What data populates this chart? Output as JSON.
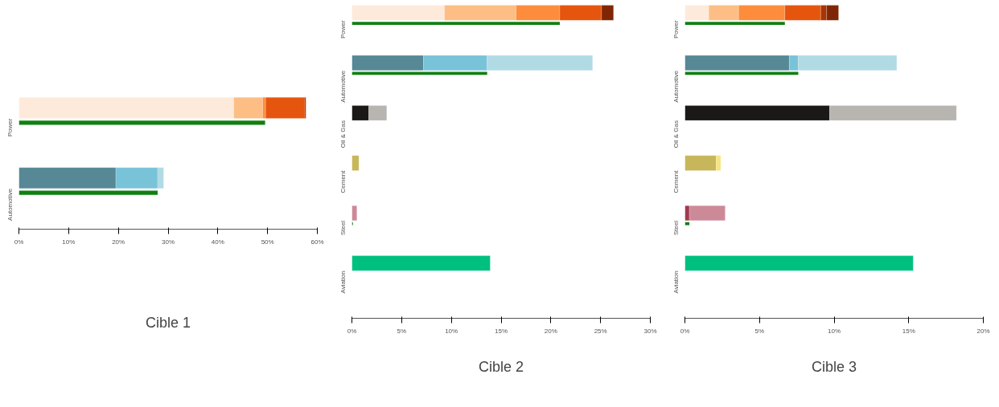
{
  "chart_data": [
    {
      "type": "bar",
      "orientation": "horizontal",
      "title": "Cible 1",
      "categories": [
        "Power",
        "Automotive"
      ],
      "xlim": [
        0,
        60
      ],
      "xticks": [
        {
          "value": 0,
          "label": "0%"
        },
        {
          "value": 10,
          "label": "10%"
        },
        {
          "value": 20,
          "label": "20%"
        },
        {
          "value": 30,
          "label": "30%"
        },
        {
          "value": 40,
          "label": "40%"
        },
        {
          "value": 50,
          "label": "50%"
        },
        {
          "value": 60,
          "label": "60%"
        }
      ],
      "grid": false,
      "series": [
        {
          "colors": [
            "#feeadb",
            "#568896"
          ],
          "base": [
            0,
            0
          ],
          "values": [
            43.2,
            19.5
          ]
        },
        {
          "colors": [
            "#fdbe85",
            "#79c3d8"
          ],
          "base": [
            43.2,
            19.5
          ],
          "values": [
            5.8,
            8.4
          ]
        },
        {
          "colors": [
            "#fd8d3c",
            "#b0dbe5"
          ],
          "base": [
            49.0,
            27.9
          ],
          "values": [
            0.6,
            1.2
          ]
        },
        {
          "colors": [
            "#e6550d",
            null
          ],
          "base": [
            49.6,
            null
          ],
          "values": [
            7.9,
            null
          ]
        },
        {
          "colors": [
            "#7f2704",
            null
          ],
          "base": [
            57.5,
            null
          ],
          "values": [
            0.2,
            null
          ]
        },
        {
          "type": "bar",
          "color": "#118011",
          "values": [
            49.5,
            27.9
          ]
        }
      ]
    },
    {
      "type": "bar",
      "orientation": "horizontal",
      "title": "Cible 2",
      "categories": [
        "Power",
        "Automotive",
        "Oil & Gas",
        "Cement",
        "Steel",
        "Aviation"
      ],
      "xlim": [
        0,
        30
      ],
      "xticks": [
        {
          "value": 0,
          "label": "0%"
        },
        {
          "value": 5,
          "label": "5%"
        },
        {
          "value": 10,
          "label": "10%"
        },
        {
          "value": 15,
          "label": "15%"
        },
        {
          "value": 20,
          "label": "20%"
        },
        {
          "value": 25,
          "label": "25%"
        },
        {
          "value": 30,
          "label": "30%"
        }
      ],
      "grid": false,
      "series": [
        {
          "colors": [
            "#feeadb",
            "#568896",
            "#1a1918",
            "#c8b65a",
            "#cc8a98",
            "#00c07f"
          ],
          "base": [
            0,
            0,
            0,
            0,
            0,
            0
          ],
          "values": [
            9.3,
            7.2,
            1.7,
            0.7,
            0.5,
            13.9
          ]
        },
        {
          "colors": [
            "#fdbe85",
            "#79c3d8",
            "#b8b5b0",
            null,
            null,
            null
          ],
          "base": [
            9.3,
            7.2,
            1.7,
            null,
            null,
            null
          ],
          "values": [
            7.2,
            6.4,
            1.8,
            null,
            null,
            null
          ]
        },
        {
          "colors": [
            "#fd8d3c",
            "#b0dbe5",
            null,
            null,
            null,
            null
          ],
          "base": [
            16.5,
            13.6,
            null,
            null,
            null,
            null
          ],
          "values": [
            4.4,
            10.6,
            null,
            null,
            null,
            null
          ]
        },
        {
          "colors": [
            "#e6550d",
            null,
            null,
            null,
            null,
            null
          ],
          "base": [
            20.9,
            null,
            null,
            null,
            null,
            null
          ],
          "values": [
            4.2,
            null,
            null,
            null,
            null,
            null
          ]
        },
        {
          "colors": [
            "#7f2704",
            null,
            null,
            null,
            null,
            null
          ],
          "base": [
            25.1,
            null,
            null,
            null,
            null,
            null
          ],
          "values": [
            1.2,
            null,
            null,
            null,
            null,
            null
          ]
        },
        {
          "type": "bar",
          "color": "#118011",
          "values": [
            20.9,
            13.6,
            null,
            null,
            0.1,
            null
          ]
        }
      ]
    },
    {
      "type": "bar",
      "orientation": "horizontal",
      "title": "Cible 3",
      "categories": [
        "Power",
        "Automotive",
        "Oil & Gas",
        "Cement",
        "Steel",
        "Aviation"
      ],
      "xlim": [
        0,
        20
      ],
      "xticks": [
        {
          "value": 0,
          "label": "0%"
        },
        {
          "value": 5,
          "label": "5%"
        },
        {
          "value": 10,
          "label": "10%"
        },
        {
          "value": 15,
          "label": "15%"
        },
        {
          "value": 20,
          "label": "20%"
        }
      ],
      "grid": false,
      "series": [
        {
          "colors": [
            "#feeadb",
            "#568896",
            "#1a1918",
            "#c8b65a",
            "#a03a50",
            "#00c07f"
          ],
          "base": [
            0,
            0,
            0,
            0,
            0,
            0
          ],
          "values": [
            1.6,
            7.0,
            9.7,
            2.1,
            0.3,
            15.3
          ]
        },
        {
          "colors": [
            "#fdbe85",
            "#79c3d8",
            "#b8b5b0",
            "#f6e57a",
            "#cc8a98",
            null
          ],
          "base": [
            1.6,
            7.0,
            9.7,
            2.1,
            0.3,
            null
          ],
          "values": [
            2.0,
            0.6,
            8.5,
            0.3,
            2.4,
            null
          ]
        },
        {
          "colors": [
            "#fd8d3c",
            "#b0dbe5",
            null,
            null,
            null,
            null
          ],
          "base": [
            3.6,
            7.6,
            null,
            null,
            null,
            null
          ],
          "values": [
            3.1,
            6.6,
            null,
            null,
            null,
            null
          ]
        },
        {
          "colors": [
            "#e6550d",
            null,
            null,
            null,
            null,
            null
          ],
          "base": [
            6.7,
            null,
            null,
            null,
            null,
            null
          ],
          "values": [
            2.4,
            null,
            null,
            null,
            null,
            null
          ]
        },
        {
          "colors": [
            "#a63603",
            null,
            null,
            null,
            null,
            null
          ],
          "base": [
            9.1,
            null,
            null,
            null,
            null,
            null
          ],
          "values": [
            0.4,
            null,
            null,
            null,
            null,
            null
          ]
        },
        {
          "colors": [
            "#7f2704",
            null,
            null,
            null,
            null,
            null
          ],
          "base": [
            9.5,
            null,
            null,
            null,
            null,
            null
          ],
          "values": [
            0.8,
            null,
            null,
            null,
            null,
            null
          ]
        },
        {
          "type": "bar",
          "color": "#118011",
          "values": [
            6.7,
            7.6,
            null,
            null,
            0.3,
            null
          ]
        }
      ]
    }
  ]
}
